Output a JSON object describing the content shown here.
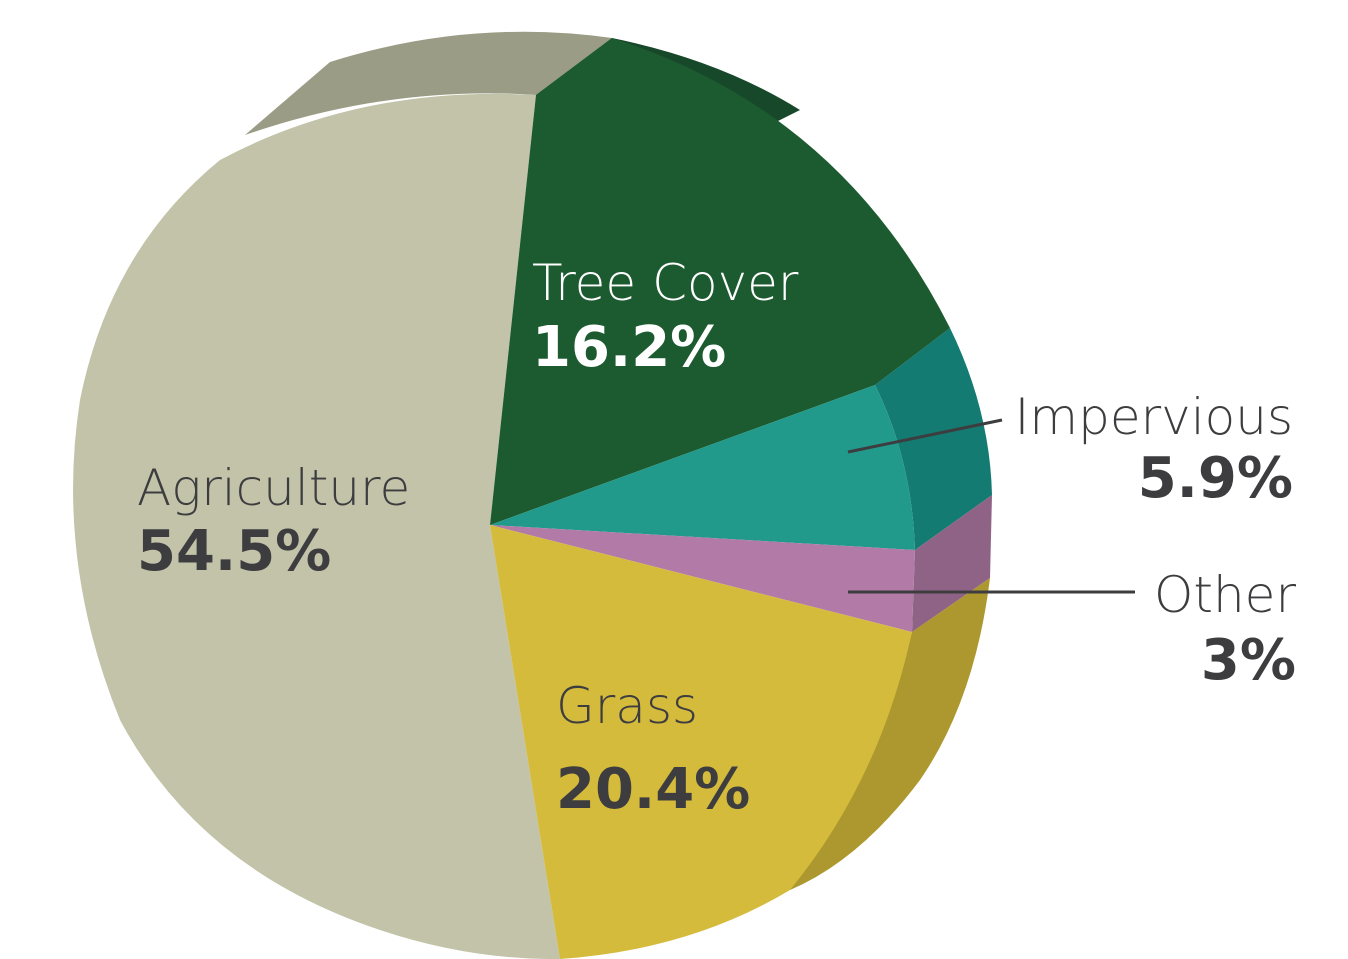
{
  "chart_data": {
    "type": "pie",
    "title": "",
    "slices": [
      {
        "label": "Agriculture",
        "value_label": "54.5%",
        "value": 54.5,
        "color": "#C2C3A8",
        "side_color": "#9B9C86"
      },
      {
        "label": "Tree Cover",
        "value_label": "16.2%",
        "value": 16.2,
        "color": "#1C5A30",
        "side_color": "#17482A"
      },
      {
        "label": "Impervious",
        "value_label": "5.9%",
        "value": 5.9,
        "color": "#219A8C",
        "side_color": "#137B71"
      },
      {
        "label": "Other",
        "value_label": "3%",
        "value": 3,
        "color": "#B27BA7",
        "side_color": "#8F6385"
      },
      {
        "label": "Grass",
        "value_label": "20.4%",
        "value": 20.4,
        "color": "#D5BB3C",
        "side_color": "#AC982F"
      }
    ],
    "style": "3d",
    "legend": "none"
  }
}
